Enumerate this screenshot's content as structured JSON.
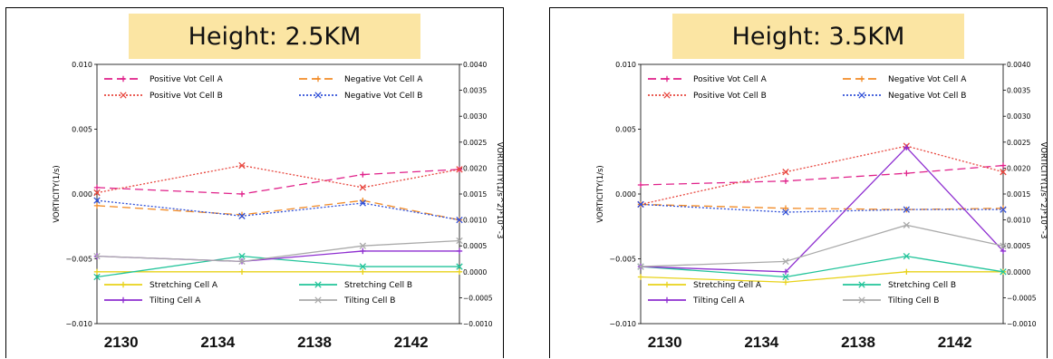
{
  "chart_data": [
    {
      "type": "line",
      "title": "Height: 2.5KM",
      "xlabel": "",
      "ylabel": "VORTICITY(1/s)",
      "y2label": "VORTICITY(1/s^2)*10^-3",
      "x": [
        2129,
        2135,
        2140,
        2144
      ],
      "xticks": [
        "2130",
        "2134",
        "2138",
        "2142"
      ],
      "xtick_values": [
        2130,
        2134,
        2138,
        2142
      ],
      "xlim": [
        2129,
        2144
      ],
      "ylim": [
        -0.01,
        0.01
      ],
      "yticks": [
        "0.010",
        "0.005",
        "0.000",
        "−0.005",
        "−0.010"
      ],
      "ytick_values": [
        0.01,
        0.005,
        0.0,
        -0.005,
        -0.01
      ],
      "y2lim": [
        -0.001,
        0.004
      ],
      "y2ticks": [
        "0.0040",
        "0.0035",
        "0.0030",
        "0.0025",
        "0.0020",
        "0.0015",
        "0.0010",
        "0.0005",
        "0.0000",
        "−0.0005",
        "−0.0010"
      ],
      "y2tick_values": [
        0.004,
        0.0035,
        0.003,
        0.0025,
        0.002,
        0.0015,
        0.001,
        0.0005,
        0.0,
        -0.0005,
        -0.001
      ],
      "legend_top": "top",
      "legend_bottom": "bottom",
      "series": [
        {
          "name": "Positive Vot Cell A",
          "axis": "left",
          "color": "#e0218a",
          "dash": "9,5",
          "marker": "plus",
          "values": [
            0.0005,
            0.0,
            0.0015,
            0.0019
          ]
        },
        {
          "name": "Negative Vot Cell A",
          "axis": "left",
          "color": "#f28c28",
          "dash": "9,5",
          "marker": "plus",
          "values": [
            -0.0009,
            -0.0016,
            -0.0005,
            -0.002
          ]
        },
        {
          "name": "Positive Vot Cell B",
          "axis": "left",
          "color": "#e8473f",
          "dash": "2,2",
          "marker": "x",
          "values": [
            0.0001,
            0.0022,
            0.0005,
            0.0019
          ]
        },
        {
          "name": "Negative Vot Cell B",
          "axis": "left",
          "color": "#3050d8",
          "dash": "2,2",
          "marker": "x",
          "values": [
            -0.0005,
            -0.0017,
            -0.0007,
            -0.002
          ]
        },
        {
          "name": "Stretching Cell A",
          "axis": "right",
          "color": "#e8d21a",
          "dash": "",
          "marker": "plus",
          "values": [
            0.0,
            0.0,
            0.0,
            0.0
          ]
        },
        {
          "name": "Stretching Cell B",
          "axis": "right",
          "color": "#22c49a",
          "dash": "",
          "marker": "x",
          "values": [
            -0.0001,
            0.0003,
            0.0001,
            0.0001
          ]
        },
        {
          "name": "Tilting Cell A",
          "axis": "right",
          "color": "#8e2ed0",
          "dash": "",
          "marker": "plus",
          "values": [
            0.0003,
            0.0002,
            0.0004,
            0.0004
          ]
        },
        {
          "name": "Tilting Cell B",
          "axis": "right",
          "color": "#aaaaaa",
          "dash": "",
          "marker": "x",
          "values": [
            0.0003,
            0.0002,
            0.0005,
            0.0006
          ]
        }
      ]
    },
    {
      "type": "line",
      "title": "Height: 3.5KM",
      "xlabel": "",
      "ylabel": "VORTICITY(1/s)",
      "y2label": "VORTICITY(1/s^2)*10^-3",
      "x": [
        2129,
        2135,
        2140,
        2144
      ],
      "xticks": [
        "2130",
        "2134",
        "2138",
        "2142"
      ],
      "xtick_values": [
        2130,
        2134,
        2138,
        2142
      ],
      "xlim": [
        2129,
        2144
      ],
      "ylim": [
        -0.01,
        0.01
      ],
      "yticks": [
        "0.010",
        "0.005",
        "0.000",
        "−0.005",
        "−0.010"
      ],
      "ytick_values": [
        0.01,
        0.005,
        0.0,
        -0.005,
        -0.01
      ],
      "y2lim": [
        -0.001,
        0.004
      ],
      "y2ticks": [
        "0.0040",
        "0.0035",
        "0.0030",
        "0.0025",
        "0.0020",
        "0.0015",
        "0.0010",
        "0.0005",
        "0.0000",
        "−0.0005",
        "−0.0010"
      ],
      "y2tick_values": [
        0.004,
        0.0035,
        0.003,
        0.0025,
        0.002,
        0.0015,
        0.001,
        0.0005,
        0.0,
        -0.0005,
        -0.001
      ],
      "legend_top": "top",
      "legend_bottom": "bottom",
      "series": [
        {
          "name": "Positive Vot Cell A",
          "axis": "left",
          "color": "#e0218a",
          "dash": "9,5",
          "marker": "plus",
          "values": [
            0.0007,
            0.001,
            0.0016,
            0.0022
          ]
        },
        {
          "name": "Negative Vot Cell A",
          "axis": "left",
          "color": "#f28c28",
          "dash": "9,5",
          "marker": "plus",
          "values": [
            -0.0008,
            -0.0011,
            -0.0012,
            -0.0011
          ]
        },
        {
          "name": "Positive Vot Cell B",
          "axis": "left",
          "color": "#e8473f",
          "dash": "2,2",
          "marker": "x",
          "values": [
            -0.0008,
            0.0017,
            0.0037,
            0.0017
          ]
        },
        {
          "name": "Negative Vot Cell B",
          "axis": "left",
          "color": "#3050d8",
          "dash": "2,2",
          "marker": "x",
          "values": [
            -0.0008,
            -0.0014,
            -0.0012,
            -0.0012
          ]
        },
        {
          "name": "Stretching Cell A",
          "axis": "right",
          "color": "#e8d21a",
          "dash": "",
          "marker": "plus",
          "values": [
            -0.0001,
            -0.0002,
            0.0,
            0.0
          ]
        },
        {
          "name": "Stretching Cell B",
          "axis": "right",
          "color": "#22c49a",
          "dash": "",
          "marker": "x",
          "values": [
            0.0001,
            -0.0001,
            0.0003,
            0.0
          ]
        },
        {
          "name": "Tilting Cell A",
          "axis": "right",
          "color": "#8e2ed0",
          "dash": "",
          "marker": "plus",
          "values": [
            0.0001,
            0.0,
            0.0024,
            0.0004
          ]
        },
        {
          "name": "Tilting Cell B",
          "axis": "right",
          "color": "#aaaaaa",
          "dash": "",
          "marker": "x",
          "values": [
            0.0001,
            0.0002,
            0.0009,
            0.0005
          ]
        }
      ]
    }
  ]
}
